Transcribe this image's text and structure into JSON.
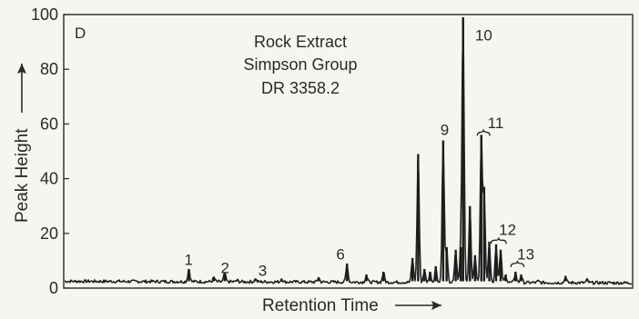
{
  "chart_data": {
    "type": "line",
    "panel_label": "D",
    "annotation_lines": [
      "Rock Extract",
      "Simpson Group",
      "DR 3358.2"
    ],
    "xlabel": "Retention Time",
    "ylabel": "Peak Height",
    "ylim": [
      0,
      100
    ],
    "yticks": [
      0,
      20,
      40,
      60,
      80,
      100
    ],
    "xlim": [
      0,
      100
    ],
    "grid": false,
    "baseline_level": 2.5,
    "peaks": [
      {
        "x": 22.0,
        "y": 7
      },
      {
        "x": 26.4,
        "y": 4
      },
      {
        "x": 28.3,
        "y": 5.5
      },
      {
        "x": 30.5,
        "y": 3
      },
      {
        "x": 33.7,
        "y": 3.5
      },
      {
        "x": 38.3,
        "y": 3.5
      },
      {
        "x": 44.8,
        "y": 4
      },
      {
        "x": 49.8,
        "y": 9
      },
      {
        "x": 53.2,
        "y": 5
      },
      {
        "x": 56.2,
        "y": 6
      },
      {
        "x": 61.3,
        "y": 11
      },
      {
        "x": 62.3,
        "y": 49
      },
      {
        "x": 63.4,
        "y": 7
      },
      {
        "x": 64.4,
        "y": 6
      },
      {
        "x": 65.4,
        "y": 8
      },
      {
        "x": 66.7,
        "y": 54
      },
      {
        "x": 67.3,
        "y": 15
      },
      {
        "x": 68.9,
        "y": 14
      },
      {
        "x": 69.8,
        "y": 15
      },
      {
        "x": 70.2,
        "y": 99
      },
      {
        "x": 71.4,
        "y": 30
      },
      {
        "x": 72.3,
        "y": 12
      },
      {
        "x": 73.4,
        "y": 56
      },
      {
        "x": 73.9,
        "y": 37
      },
      {
        "x": 74.8,
        "y": 17
      },
      {
        "x": 76.0,
        "y": 16
      },
      {
        "x": 76.8,
        "y": 14
      },
      {
        "x": 77.7,
        "y": 5
      },
      {
        "x": 79.4,
        "y": 6
      },
      {
        "x": 80.4,
        "y": 5
      },
      {
        "x": 83.4,
        "y": 3
      },
      {
        "x": 88.2,
        "y": 4.5
      },
      {
        "x": 92.0,
        "y": 3.5
      }
    ],
    "peak_labels": [
      {
        "text": "1",
        "x": 21.2,
        "y": 8.5
      },
      {
        "text": "2",
        "x": 27.6,
        "y": 5.5
      },
      {
        "text": "3",
        "x": 34.2,
        "y": 4.5
      },
      {
        "text": "6",
        "x": 47.9,
        "y": 10.5
      },
      {
        "text": "9",
        "x": 66.2,
        "y": 56
      },
      {
        "text": "10",
        "x": 72.3,
        "y": 90.5
      },
      {
        "text": "11",
        "x": 74.5,
        "y": 58.5
      },
      {
        "text": "12",
        "x": 76.5,
        "y": 19.5
      },
      {
        "text": "13",
        "x": 79.7,
        "y": 10.5
      }
    ],
    "brackets": [
      {
        "x1": 72.7,
        "x2": 74.9,
        "y": 57
      },
      {
        "x1": 75.1,
        "x2": 77.8,
        "y": 17.5
      },
      {
        "x1": 78.6,
        "x2": 80.9,
        "y": 9
      }
    ]
  }
}
